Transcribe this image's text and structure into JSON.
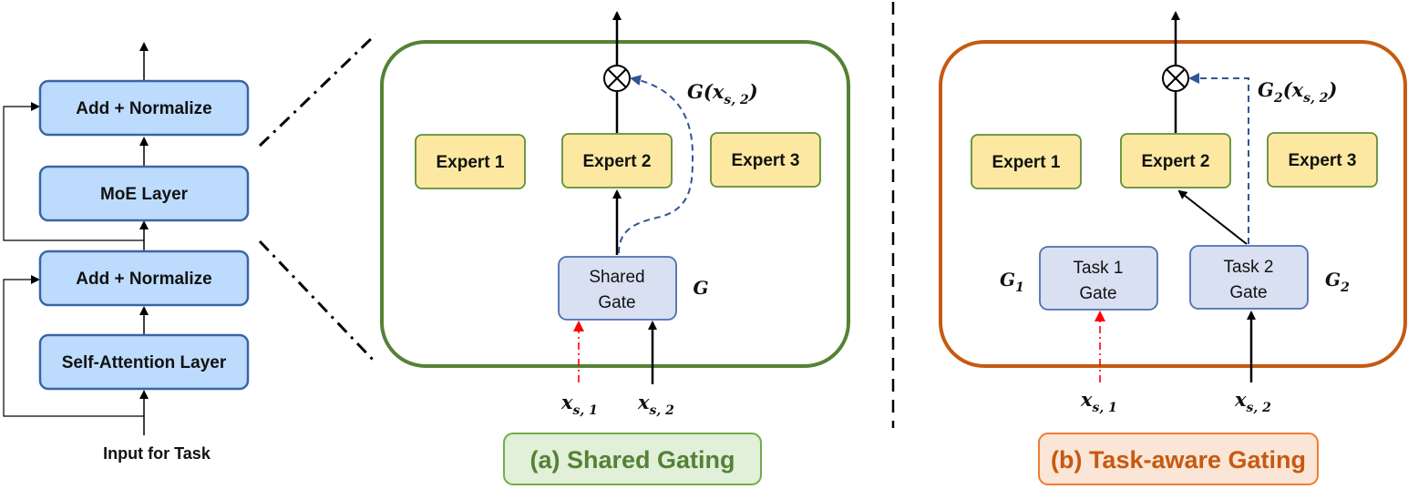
{
  "colors": {
    "layer_fill": "#bddcfd",
    "layer_stroke": "#3a64a6",
    "expert_fill": "#fce8a0",
    "expert_stroke": "#5f8f36",
    "gate_fill": "#d8e0f2",
    "gate_stroke": "#4d6fb0",
    "shared_border": "#548235",
    "task_border": "#c55a11",
    "dashed_blue": "#2f5597",
    "red_arrow": "#ff0000",
    "caption_a_fill": "#e2efd9",
    "caption_a_text": "#548235",
    "caption_b_fill": "#fbe5d6",
    "caption_b_text": "#c55a11"
  },
  "stack": {
    "add_norm_top": "Add + Normalize",
    "moe_layer": "MoE Layer",
    "add_norm_bottom": "Add + Normalize",
    "self_attention": "Self-Attention Layer",
    "input_label": "Input for Task"
  },
  "shared": {
    "experts": [
      "Expert 1",
      "Expert 2",
      "Expert 3"
    ],
    "gate_line1": "Shared",
    "gate_line2": "Gate",
    "gate_symbol": "G",
    "weight_label": "G(x",
    "weight_sub": "s, 2",
    "weight_close": ")",
    "input1": "x",
    "input1_sub": "s, 1",
    "input2": "x",
    "input2_sub": "s, 2",
    "caption": "(a) Shared Gating"
  },
  "task": {
    "experts": [
      "Expert 1",
      "Expert 2",
      "Expert 3"
    ],
    "gate1_line1": "Task 1",
    "gate1_line2": "Gate",
    "gate2_line1": "Task 2",
    "gate2_line2": "Gate",
    "gate1_symbol": "G",
    "gate1_sub": "1",
    "gate2_symbol": "G",
    "gate2_sub": "2",
    "weight_label": "G",
    "weight_label_sub": "2",
    "weight_open": "(x",
    "weight_sub": "s, 2",
    "weight_close": ")",
    "input1": "x",
    "input1_sub": "s, 1",
    "input2": "x",
    "input2_sub": "s, 2",
    "caption": "(b) Task-aware Gating"
  }
}
